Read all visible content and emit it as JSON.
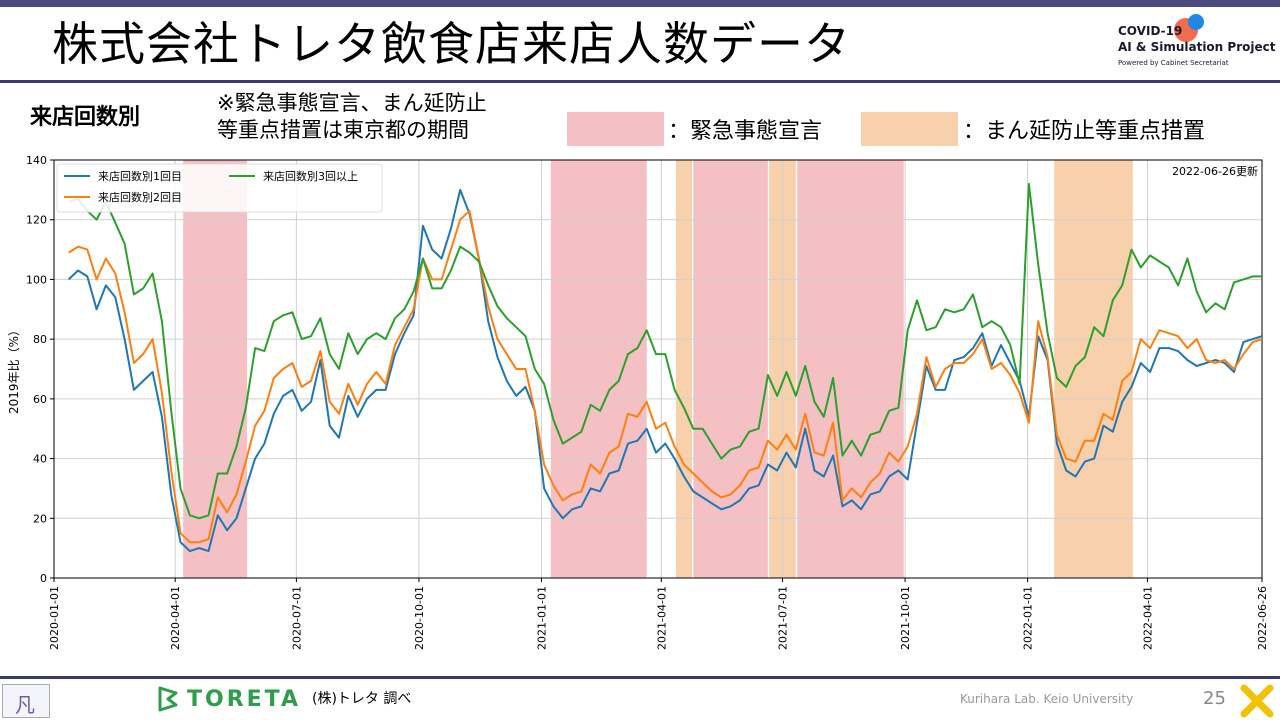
{
  "header": {
    "title": "株式会社トレタ飲食店来店人数データ",
    "logo_line1": "COVID-19",
    "logo_line2": "AI & Simulation Project",
    "logo_line3": "Powered by Cabinet Secretariat"
  },
  "subtitle": "来店回数別",
  "note": "※緊急事態宣言、まん延防止\n等重点措置は東京都の期間",
  "period_legend": [
    {
      "label": "：緊急事態宣言",
      "color": "#f4c0c4"
    },
    {
      "label": "：まん延防止等重点措置",
      "color": "#f8d0ab"
    }
  ],
  "chart_data": {
    "type": "line",
    "ylabel": "2019年比（%）",
    "xlabel": "",
    "ylim": [
      0,
      140
    ],
    "yticks": [
      0,
      20,
      40,
      60,
      80,
      100,
      120,
      140
    ],
    "xlim": [
      "2020-01-01",
      "2022-06-26"
    ],
    "xticks": [
      "2020-01-01",
      "2020-04-01",
      "2020-07-01",
      "2020-10-01",
      "2021-01-01",
      "2021-04-01",
      "2021-07-01",
      "2021-10-01",
      "2022-01-01",
      "2022-04-01",
      "2022-06-26"
    ],
    "grid": true,
    "legend_position": "top-left",
    "update_note": "2022-06-26更新",
    "periods": [
      {
        "kind": "emergency",
        "start": "2020-04-07",
        "end": "2020-05-25"
      },
      {
        "kind": "emergency",
        "start": "2021-01-08",
        "end": "2021-03-21"
      },
      {
        "kind": "priority",
        "start": "2021-04-12",
        "end": "2021-04-24"
      },
      {
        "kind": "emergency",
        "start": "2021-04-25",
        "end": "2021-06-20"
      },
      {
        "kind": "priority",
        "start": "2021-06-21",
        "end": "2021-07-11"
      },
      {
        "kind": "emergency",
        "start": "2021-07-12",
        "end": "2021-09-30"
      },
      {
        "kind": "priority",
        "start": "2022-01-21",
        "end": "2022-03-21"
      }
    ],
    "dates": [
      "2020-01-12",
      "2020-01-19",
      "2020-01-26",
      "2020-02-02",
      "2020-02-09",
      "2020-02-16",
      "2020-02-23",
      "2020-03-01",
      "2020-03-08",
      "2020-03-15",
      "2020-03-22",
      "2020-03-29",
      "2020-04-05",
      "2020-04-12",
      "2020-04-19",
      "2020-04-26",
      "2020-05-03",
      "2020-05-10",
      "2020-05-17",
      "2020-05-24",
      "2020-05-31",
      "2020-06-07",
      "2020-06-14",
      "2020-06-21",
      "2020-06-28",
      "2020-07-05",
      "2020-07-12",
      "2020-07-19",
      "2020-07-26",
      "2020-08-02",
      "2020-08-09",
      "2020-08-16",
      "2020-08-23",
      "2020-08-30",
      "2020-09-06",
      "2020-09-13",
      "2020-09-20",
      "2020-09-27",
      "2020-10-04",
      "2020-10-11",
      "2020-10-18",
      "2020-10-25",
      "2020-11-01",
      "2020-11-08",
      "2020-11-15",
      "2020-11-22",
      "2020-11-29",
      "2020-12-06",
      "2020-12-13",
      "2020-12-20",
      "2020-12-27",
      "2021-01-03",
      "2021-01-10",
      "2021-01-17",
      "2021-01-24",
      "2021-01-31",
      "2021-02-07",
      "2021-02-14",
      "2021-02-21",
      "2021-02-28",
      "2021-03-07",
      "2021-03-14",
      "2021-03-21",
      "2021-03-28",
      "2021-04-04",
      "2021-04-11",
      "2021-04-18",
      "2021-04-25",
      "2021-05-02",
      "2021-05-09",
      "2021-05-16",
      "2021-05-23",
      "2021-05-30",
      "2021-06-06",
      "2021-06-13",
      "2021-06-20",
      "2021-06-27",
      "2021-07-04",
      "2021-07-11",
      "2021-07-18",
      "2021-07-25",
      "2021-08-01",
      "2021-08-08",
      "2021-08-15",
      "2021-08-22",
      "2021-08-29",
      "2021-09-05",
      "2021-09-12",
      "2021-09-19",
      "2021-09-26",
      "2021-10-03",
      "2021-10-10",
      "2021-10-17",
      "2021-10-24",
      "2021-10-31",
      "2021-11-07",
      "2021-11-14",
      "2021-11-21",
      "2021-11-28",
      "2021-12-05",
      "2021-12-12",
      "2021-12-19",
      "2021-12-26",
      "2022-01-02",
      "2022-01-09",
      "2022-01-16",
      "2022-01-23",
      "2022-01-30",
      "2022-02-06",
      "2022-02-13",
      "2022-02-20",
      "2022-02-27",
      "2022-03-06",
      "2022-03-13",
      "2022-03-20",
      "2022-03-27",
      "2022-04-03",
      "2022-04-10",
      "2022-04-17",
      "2022-04-24",
      "2022-05-01",
      "2022-05-08",
      "2022-05-15",
      "2022-05-22",
      "2022-05-29",
      "2022-06-05",
      "2022-06-12",
      "2022-06-19",
      "2022-06-26"
    ],
    "series": [
      {
        "name": "来店回数別1回目",
        "color": "#1f77b4",
        "values": [
          100,
          103,
          101,
          90,
          98,
          94,
          80,
          63,
          66,
          69,
          54,
          28,
          12,
          9,
          10,
          9,
          21,
          16,
          20,
          30,
          40,
          45,
          55,
          61,
          63,
          56,
          59,
          73,
          51,
          47,
          61,
          54,
          60,
          63,
          63,
          75,
          82,
          88,
          118,
          110,
          107,
          117,
          130,
          122,
          107,
          86,
          74,
          66,
          61,
          64,
          56,
          30,
          24,
          20,
          23,
          24,
          30,
          29,
          35,
          36,
          45,
          46,
          50,
          42,
          45,
          40,
          34,
          29,
          27,
          25,
          23,
          24,
          26,
          30,
          31,
          38,
          36,
          42,
          37,
          50,
          36,
          34,
          41,
          24,
          26,
          23,
          28,
          29,
          34,
          36,
          33,
          52,
          71,
          63,
          63,
          73,
          74,
          77,
          82,
          71,
          78,
          72,
          66,
          54,
          81,
          73,
          45,
          36,
          34,
          39,
          40,
          51,
          49,
          59,
          64,
          72,
          69,
          77,
          77,
          76,
          73,
          71,
          72,
          73,
          72,
          69,
          79,
          80,
          81
        ]
      },
      {
        "name": "来店回数別2回目",
        "color": "#ff7f0e",
        "values": [
          109,
          111,
          110,
          100,
          107,
          102,
          89,
          72,
          75,
          80,
          62,
          36,
          15,
          12,
          12,
          13,
          27,
          22,
          28,
          39,
          51,
          56,
          67,
          70,
          72,
          64,
          66,
          76,
          59,
          55,
          65,
          58,
          65,
          69,
          65,
          78,
          84,
          90,
          107,
          100,
          100,
          110,
          120,
          123,
          107,
          91,
          80,
          75,
          70,
          70,
          56,
          38,
          31,
          26,
          28,
          29,
          38,
          35,
          42,
          44,
          55,
          54,
          59,
          50,
          52,
          44,
          38,
          35,
          32,
          29,
          27,
          28,
          31,
          36,
          37,
          46,
          43,
          48,
          43,
          55,
          42,
          41,
          52,
          26,
          30,
          27,
          32,
          35,
          42,
          39,
          44,
          55,
          74,
          64,
          70,
          72,
          72,
          75,
          80,
          70,
          72,
          68,
          62,
          52,
          86,
          74,
          48,
          40,
          39,
          46,
          46,
          55,
          53,
          66,
          69,
          80,
          77,
          83,
          82,
          81,
          77,
          80,
          73,
          72,
          73,
          70,
          75,
          79,
          80
        ]
      },
      {
        "name": "来店回数別3回以上",
        "color": "#2ca02c",
        "values": [
          126,
          127,
          123,
          120,
          126,
          119,
          112,
          95,
          97,
          102,
          86,
          56,
          30,
          21,
          20,
          21,
          35,
          35,
          44,
          57,
          77,
          76,
          86,
          88,
          89,
          80,
          81,
          87,
          75,
          70,
          82,
          75,
          80,
          82,
          80,
          87,
          90,
          96,
          107,
          97,
          97,
          103,
          111,
          109,
          106,
          98,
          91,
          87,
          84,
          81,
          70,
          65,
          53,
          45,
          47,
          49,
          58,
          56,
          63,
          66,
          75,
          77,
          83,
          75,
          75,
          63,
          57,
          50,
          50,
          45,
          40,
          43,
          44,
          49,
          50,
          68,
          61,
          69,
          61,
          71,
          59,
          54,
          67,
          41,
          46,
          41,
          48,
          49,
          56,
          57,
          83,
          93,
          83,
          84,
          90,
          89,
          90,
          95,
          84,
          86,
          84,
          78,
          65,
          132,
          105,
          82,
          67,
          64,
          71,
          74,
          84,
          81,
          93,
          98,
          110,
          104,
          108,
          106,
          104,
          98,
          107,
          96,
          89,
          92,
          90,
          99,
          100,
          101,
          101
        ]
      }
    ]
  },
  "footer": {
    "left_logo": "凡",
    "brand": "TORETA",
    "source": "(株)トレタ 調べ",
    "lab": "Kurihara Lab. Keio University",
    "page_number": "25"
  }
}
